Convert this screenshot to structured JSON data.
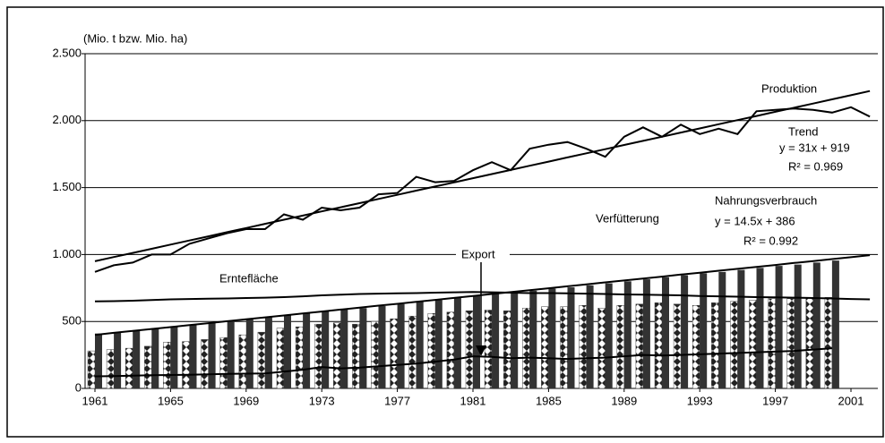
{
  "chart_data": {
    "type": "bar-line",
    "unit_label": "(Mio. t bzw. Mio. ha)",
    "x": [
      1961,
      1962,
      1963,
      1964,
      1965,
      1966,
      1967,
      1968,
      1969,
      1970,
      1971,
      1972,
      1973,
      1974,
      1975,
      1976,
      1977,
      1978,
      1979,
      1980,
      1981,
      1982,
      1983,
      1984,
      1985,
      1986,
      1987,
      1988,
      1989,
      1990,
      1991,
      1992,
      1993,
      1994,
      1995,
      1996,
      1997,
      1998,
      1999,
      2000,
      2001,
      2002
    ],
    "xticks": [
      1961,
      1965,
      1969,
      1973,
      1977,
      1981,
      1985,
      1989,
      1993,
      1997,
      2001
    ],
    "ylim": [
      0,
      2500
    ],
    "yticks": [
      0,
      500,
      {
        "value": 1000,
        "label": "1.000"
      },
      {
        "value": 1500,
        "label": "1.500"
      },
      {
        "value": 2000,
        "label": "2.000"
      },
      {
        "value": 2500,
        "label": "2.500"
      }
    ],
    "grid": true,
    "series": [
      {
        "name": "Verfütterung",
        "kind": "bar",
        "color": "#808080",
        "values": [
          280,
          290,
          300,
          315,
          345,
          350,
          365,
          380,
          400,
          420,
          450,
          460,
          480,
          490,
          480,
          500,
          520,
          540,
          560,
          570,
          580,
          585,
          580,
          600,
          610,
          610,
          620,
          600,
          620,
          630,
          640,
          630,
          620,
          640,
          650,
          660,
          670,
          670,
          680,
          680,
          null,
          null
        ]
      },
      {
        "name": "Nahrungsverbrauch",
        "kind": "bar",
        "color": "#333333",
        "values": [
          410,
          420,
          435,
          450,
          465,
          475,
          490,
          505,
          520,
          535,
          550,
          560,
          580,
          590,
          600,
          615,
          630,
          645,
          660,
          675,
          690,
          705,
          715,
          730,
          745,
          755,
          770,
          785,
          800,
          815,
          830,
          845,
          860,
          870,
          885,
          900,
          915,
          925,
          940,
          955,
          null,
          null
        ]
      },
      {
        "name": "Produktion",
        "kind": "line",
        "color": "#000000",
        "values": [
          870,
          920,
          940,
          1000,
          1000,
          1080,
          1120,
          1160,
          1190,
          1190,
          1300,
          1260,
          1350,
          1330,
          1350,
          1450,
          1460,
          1580,
          1540,
          1550,
          1630,
          1690,
          1630,
          1790,
          1820,
          1840,
          1790,
          1730,
          1880,
          1950,
          1880,
          1970,
          1900,
          1940,
          1900,
          2070,
          2080,
          2090,
          2080,
          2060,
          2100,
          2030
        ]
      },
      {
        "name": "Erntefläche",
        "kind": "line",
        "color": "#000000",
        "values": [
          650,
          652,
          655,
          660,
          665,
          668,
          670,
          672,
          675,
          678,
          682,
          688,
          695,
          700,
          705,
          708,
          710,
          712,
          715,
          718,
          720,
          718,
          715,
          712,
          712,
          710,
          708,
          705,
          702,
          700,
          698,
          695,
          690,
          688,
          685,
          682,
          680,
          678,
          675,
          672,
          668,
          665
        ]
      },
      {
        "name": "Export",
        "kind": "line",
        "color": "#000000",
        "values": [
          90,
          92,
          95,
          98,
          100,
          102,
          105,
          108,
          110,
          112,
          125,
          140,
          160,
          150,
          155,
          165,
          175,
          185,
          200,
          215,
          240,
          235,
          225,
          230,
          225,
          220,
          225,
          230,
          240,
          250,
          245,
          250,
          255,
          260,
          265,
          270,
          275,
          280,
          290,
          300,
          null,
          null
        ]
      }
    ],
    "trendlines": [
      {
        "name": "Trend",
        "equation": "y = 31x + 919",
        "r2": "R² = 0.969",
        "values": [
          950,
          981,
          1012,
          1043,
          1074,
          1105,
          1136,
          1167,
          1198,
          1229,
          1260,
          1291,
          1322,
          1353,
          1384,
          1415,
          1446,
          1477,
          1508,
          1539,
          1570,
          1601,
          1632,
          1663,
          1694,
          1725,
          1756,
          1787,
          1818,
          1849,
          1880,
          1911,
          1942,
          1973,
          2004,
          2035,
          2066,
          2097,
          2128,
          2159,
          2190,
          2221
        ]
      },
      {
        "equation": "y = 14.5x + 386",
        "r2": "R² = 0.992",
        "values": [
          400,
          415,
          429,
          444,
          458,
          473,
          487,
          502,
          516,
          531,
          545,
          560,
          574,
          589,
          603,
          618,
          632,
          647,
          661,
          676,
          690,
          705,
          719,
          734,
          748,
          763,
          777,
          792,
          806,
          821,
          835,
          850,
          864,
          879,
          893,
          908,
          922,
          937,
          951,
          966,
          980,
          995
        ]
      }
    ]
  }
}
